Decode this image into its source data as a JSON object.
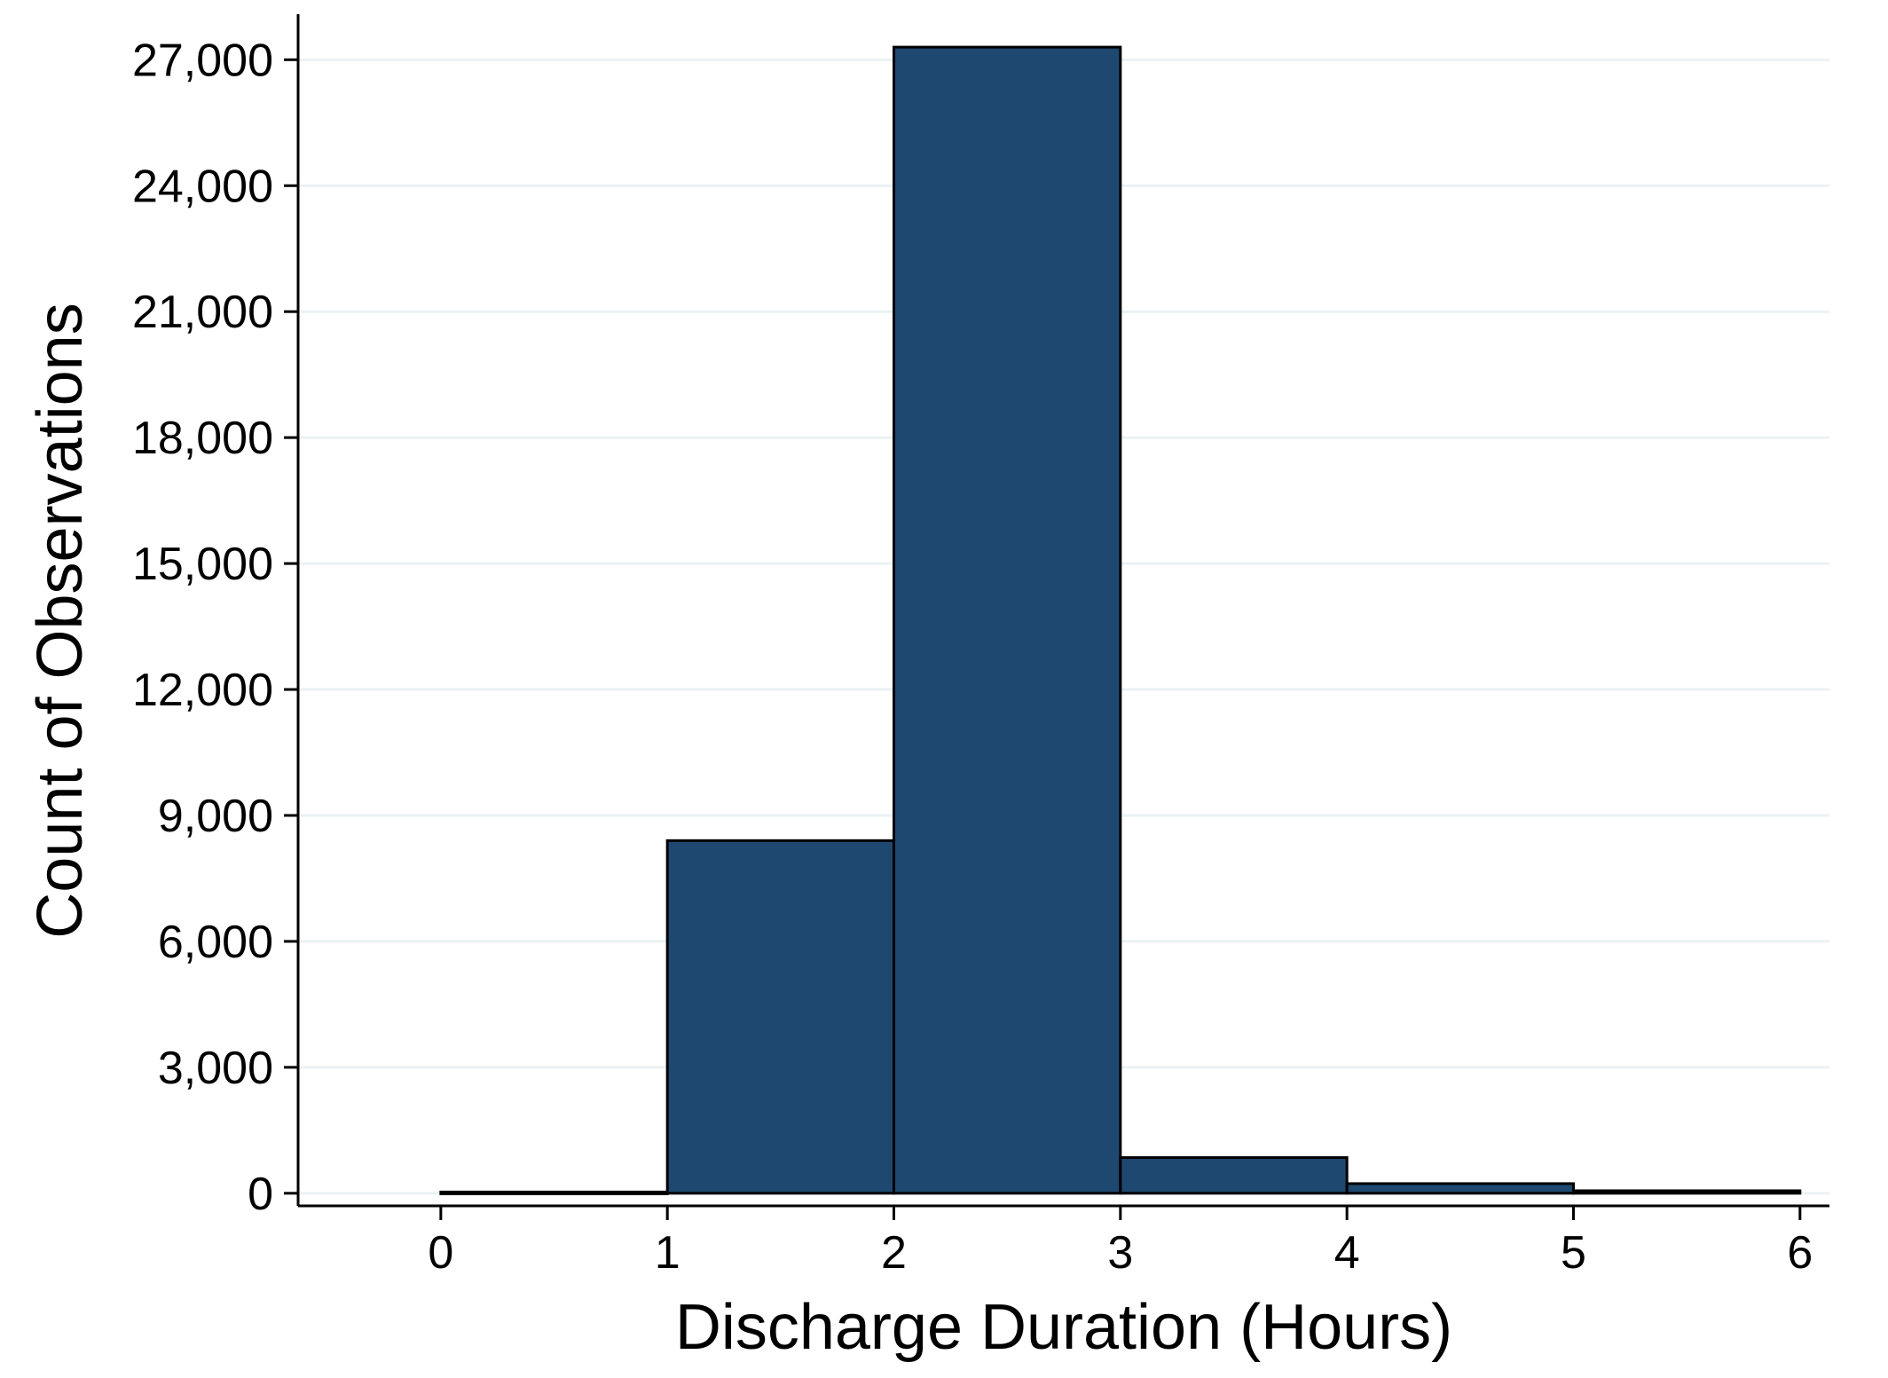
{
  "chart_data": {
    "type": "bar",
    "title": "",
    "xlabel": "Discharge Duration (Hours)",
    "ylabel": "Count of Observations",
    "bins": [
      {
        "x0": 0,
        "x1": 1,
        "value": 30
      },
      {
        "x0": 1,
        "x1": 2,
        "value": 8400
      },
      {
        "x0": 2,
        "x1": 3,
        "value": 27300
      },
      {
        "x0": 3,
        "x1": 4,
        "value": 850
      },
      {
        "x0": 4,
        "x1": 5,
        "value": 230
      },
      {
        "x0": 5,
        "x1": 6,
        "value": 60
      }
    ],
    "xlim": [
      -0.63,
      6.13
    ],
    "ylim": [
      -300,
      28000
    ],
    "x_ticks": [
      {
        "value": 0,
        "label": "0"
      },
      {
        "value": 1,
        "label": "1"
      },
      {
        "value": 2,
        "label": "2"
      },
      {
        "value": 3,
        "label": "3"
      },
      {
        "value": 4,
        "label": "4"
      },
      {
        "value": 5,
        "label": "5"
      },
      {
        "value": 6,
        "label": "6"
      }
    ],
    "y_ticks": [
      {
        "value": 0,
        "label": "0"
      },
      {
        "value": 3000,
        "label": "3,000"
      },
      {
        "value": 6000,
        "label": "6,000"
      },
      {
        "value": 9000,
        "label": "9,000"
      },
      {
        "value": 12000,
        "label": "12,000"
      },
      {
        "value": 15000,
        "label": "15,000"
      },
      {
        "value": 18000,
        "label": "18,000"
      },
      {
        "value": 21000,
        "label": "21,000"
      },
      {
        "value": 24000,
        "label": "24,000"
      },
      {
        "value": 27000,
        "label": "27,000"
      }
    ],
    "grid": true,
    "legend": "none",
    "bar_color": "#1e4870",
    "bar_edge_color": "#000000",
    "grid_color": "#eaf2f3"
  }
}
